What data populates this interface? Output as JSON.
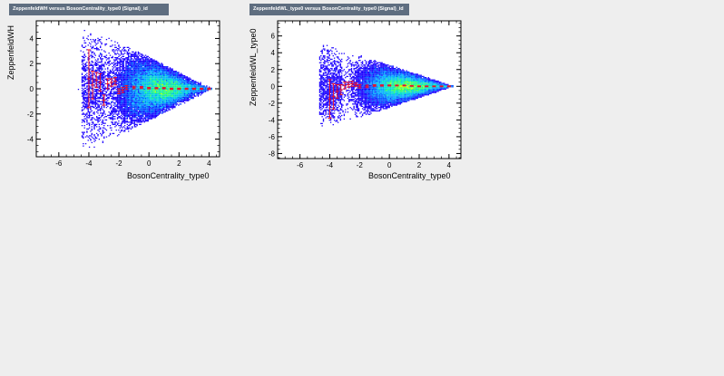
{
  "chart_data": [
    {
      "type": "scatter",
      "title": "ZeppenfeldWH versus BosonCentrality_type0 (Signal)_id",
      "xlabel": "BosonCentrality_type0",
      "ylabel": "ZeppenfeldWH",
      "xlim": [
        -7.5,
        4.7
      ],
      "ylim": [
        -5.4,
        5.4
      ],
      "xticks": [
        -6,
        -4,
        -2,
        0,
        2,
        4
      ],
      "yticks": [
        -4,
        -2,
        0,
        2,
        4
      ],
      "density": {
        "description": "2D histogram, triangular band narrowing toward x=4.2, colored from blue to green/yellow at high density",
        "apex_x": 4.2,
        "start_x": -3.5,
        "half_width_at_start": 4.6,
        "core_x": 0.5,
        "colors": [
          "#1a00ff",
          "#0055ff",
          "#00aaff",
          "#00ddcc",
          "#33ff66",
          "#ccff00"
        ]
      },
      "profile": {
        "name": "profile",
        "color": "#e8112d",
        "x": [
          -4.0,
          -3.75,
          -3.5,
          -3.25,
          -3.0,
          -2.75,
          -2.5,
          -2.25,
          -2.0,
          -1.75,
          -1.5,
          -1.0,
          -0.5,
          0.0,
          0.5,
          1.0,
          1.5,
          2.0,
          2.5,
          3.0,
          3.5,
          4.0
        ],
        "y": [
          0.8,
          0.3,
          0.7,
          0.5,
          -0.9,
          0.4,
          0.5,
          0.6,
          -0.2,
          -0.1,
          0.1,
          0.1,
          0.1,
          0.05,
          0.05,
          0.05,
          0.0,
          0.0,
          0.0,
          0.0,
          0.0,
          0.0
        ],
        "err": [
          2.3,
          1.1,
          0.6,
          0.7,
          0.4,
          0.4,
          0.3,
          0.3,
          0.2,
          0.2,
          0.15,
          0.1,
          0.08,
          0.06,
          0.05,
          0.05,
          0.05,
          0.05,
          0.05,
          0.05,
          0.05,
          0.06
        ]
      }
    },
    {
      "type": "scatter",
      "title": "ZeppenfeldWL_type0 versus BosonCentrality_type0 (Signal)_id",
      "xlabel": "BosonCentrality_type0",
      "ylabel": "ZeppenfeldWL_type0",
      "xlim": [
        -7.5,
        4.8
      ],
      "ylim": [
        -8.6,
        7.8
      ],
      "xticks": [
        -6,
        -4,
        -2,
        0,
        2,
        4
      ],
      "yticks": [
        -8,
        -6,
        -4,
        -2,
        0,
        2,
        4,
        6
      ],
      "density": {
        "description": "2D histogram, triangular band narrowing toward x=4.3, colored from blue to green/yellow at high density",
        "apex_x": 4.3,
        "start_x": -3.7,
        "half_width_at_start": 4.7,
        "core_x": 0.7,
        "colors": [
          "#1a00ff",
          "#0055ff",
          "#00aaff",
          "#00ddcc",
          "#33ff66",
          "#ccff00"
        ]
      },
      "profile": {
        "name": "profile",
        "color": "#e8112d",
        "x": [
          -4.0,
          -3.75,
          -3.5,
          -3.25,
          -3.0,
          -2.75,
          -2.5,
          -2.25,
          -2.0,
          -1.5,
          -1.0,
          -0.5,
          0.0,
          0.5,
          1.0,
          1.5,
          2.0,
          2.5,
          3.0,
          3.5,
          4.0
        ],
        "y": [
          -1.5,
          -1.2,
          -0.6,
          -0.4,
          0.1,
          0.2,
          0.3,
          0.2,
          0.0,
          0.0,
          0.1,
          0.1,
          0.1,
          0.1,
          0.1,
          0.05,
          0.0,
          0.0,
          0.0,
          0.0,
          0.0
        ],
        "err": [
          2.3,
          1.5,
          0.8,
          0.6,
          0.4,
          0.3,
          0.3,
          0.2,
          0.2,
          0.15,
          0.1,
          0.08,
          0.06,
          0.05,
          0.05,
          0.05,
          0.05,
          0.05,
          0.05,
          0.05,
          0.06
        ]
      }
    }
  ]
}
